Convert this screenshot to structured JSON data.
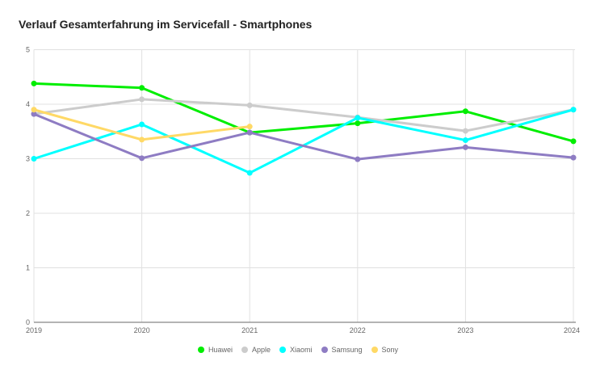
{
  "chart_data": {
    "type": "line",
    "title": "Verlauf Gesamterfahrung im Servicefall - Smartphones",
    "xlabel": "",
    "ylabel": "",
    "x": [
      "2019",
      "2020",
      "2021",
      "2022",
      "2023",
      "2024"
    ],
    "ylim": [
      0,
      5
    ],
    "yticks": [
      "0",
      "1",
      "2",
      "3",
      "4",
      "5"
    ],
    "grid": true,
    "legend_position": "bottom",
    "series": [
      {
        "name": "Huawei",
        "color": "#00ee00",
        "values": [
          4.38,
          4.3,
          3.48,
          3.65,
          3.87,
          3.32
        ]
      },
      {
        "name": "Apple",
        "color": "#cccccc",
        "values": [
          3.82,
          4.09,
          3.98,
          3.76,
          3.51,
          3.9
        ]
      },
      {
        "name": "Xiaomi",
        "color": "#00ffff",
        "values": [
          3.0,
          3.63,
          2.74,
          3.75,
          3.34,
          3.9
        ]
      },
      {
        "name": "Samsung",
        "color": "#8e7cc3",
        "values": [
          3.82,
          3.01,
          3.48,
          2.99,
          3.21,
          3.02
        ]
      },
      {
        "name": "Sony",
        "color": "#ffd966",
        "values": [
          3.9,
          3.35,
          3.59,
          null,
          null,
          null
        ]
      }
    ]
  }
}
